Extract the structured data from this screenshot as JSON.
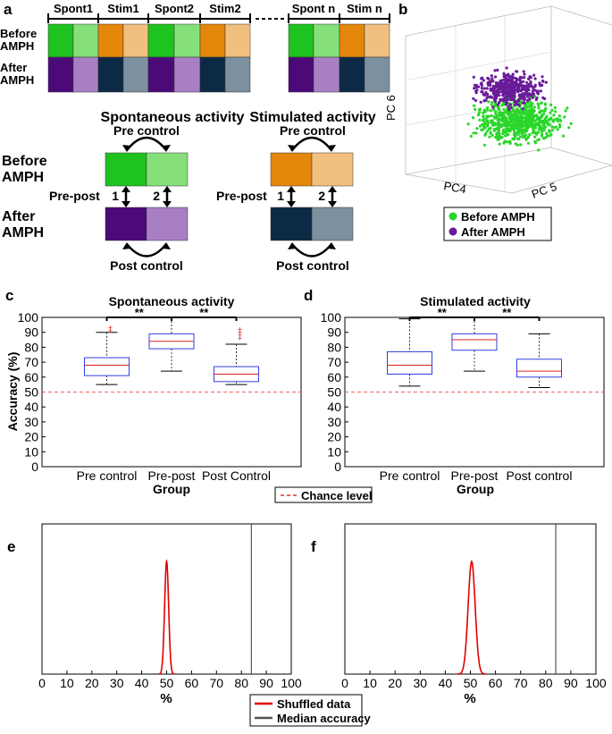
{
  "panel_labels": {
    "a": "a",
    "b": "b",
    "c": "c",
    "d": "d",
    "e": "e",
    "f": "f"
  },
  "colors": {
    "spont_before_dark": "#1fc31f",
    "spont_before_light": "#86e07a",
    "stim_before_dark": "#e5870b",
    "stim_before_light": "#f2c07e",
    "spont_after_dark": "#4b0a78",
    "spont_after_light": "#a97fc4",
    "stim_after_dark": "#0c2a45",
    "stim_after_light": "#7c90a0",
    "green_points": "#2ad62a",
    "purple_points": "#6a1b9a",
    "box": "#2f3fe0",
    "median": "#e02020",
    "chance": "#f26060",
    "shuffled": "#e00000",
    "median_line": "#555555"
  },
  "panel_a": {
    "timeline_labels": [
      "Spont1",
      "Stim1",
      "Spont2",
      "Stim2",
      "Spont n",
      "Stim n"
    ],
    "row_labels": [
      "Before AMPH",
      "After AMPH"
    ],
    "spont_title": "Spontaneous activity",
    "stim_title": "Stimulated activity",
    "pre_control": "Pre control",
    "post_control": "Post control",
    "pre_post": "Pre-post",
    "before_label": "Before AMPH",
    "after_label": "After AMPH",
    "arrow_num_1": "1",
    "arrow_num_2": "2"
  },
  "panel_b": {
    "axis_pc6": "PC 6",
    "axis_pc4": "PC4",
    "axis_pc5": "PC 5",
    "legend": [
      "Before AMPH",
      "After AMPH"
    ]
  },
  "chart_data": [
    {
      "id": "c",
      "type": "box",
      "title": "Spontaneous activity",
      "xlabel": "Group",
      "ylabel": "Accuracy (%)",
      "categories": [
        "Pre control",
        "Pre-post",
        "Post Control"
      ],
      "ylim": [
        0,
        100
      ],
      "yticks": [
        "0",
        "10",
        "20",
        "30",
        "40",
        "50",
        "60",
        "70",
        "80",
        "90",
        "100"
      ],
      "boxes": [
        {
          "min": 55,
          "q1": 61,
          "median": 68,
          "q3": 73,
          "max": 90,
          "outliers": [
            91,
            93
          ]
        },
        {
          "min": 64,
          "q1": 79,
          "median": 84,
          "q3": 89,
          "max": 100,
          "outliers": []
        },
        {
          "min": 55,
          "q1": 57,
          "median": 62,
          "q3": 67,
          "max": 82,
          "outliers": [
            86,
            88,
            90,
            92
          ]
        }
      ],
      "chance_level": 50,
      "significance": [
        "**",
        "**"
      ]
    },
    {
      "id": "d",
      "type": "box",
      "title": "Stimulated activity",
      "xlabel": "Group",
      "ylabel": "",
      "categories": [
        "Pre control",
        "Pre-post",
        "Post control"
      ],
      "ylim": [
        0,
        100
      ],
      "yticks": [
        "0",
        "10",
        "20",
        "30",
        "40",
        "50",
        "60",
        "70",
        "80",
        "90",
        "100"
      ],
      "boxes": [
        {
          "min": 54,
          "q1": 62,
          "median": 68,
          "q3": 77,
          "max": 99,
          "outliers": []
        },
        {
          "min": 64,
          "q1": 78,
          "median": 85,
          "q3": 89,
          "max": 100,
          "outliers": []
        },
        {
          "min": 53,
          "q1": 60,
          "median": 64,
          "q3": 72,
          "max": 89,
          "outliers": []
        }
      ],
      "chance_level": 50,
      "significance": [
        "**",
        "**"
      ]
    },
    {
      "id": "e",
      "type": "line",
      "xlabel": "%",
      "xlim": [
        0,
        100
      ],
      "xticks": [
        "0",
        "10",
        "20",
        "30",
        "40",
        "50",
        "60",
        "70",
        "80",
        "90",
        "100"
      ],
      "shuffled_peak": {
        "center": 50,
        "width": 0.8,
        "height": 0.75
      },
      "median_accuracy": 84
    },
    {
      "id": "f",
      "type": "line",
      "xlabel": "%",
      "xlim": [
        0,
        100
      ],
      "xticks": [
        "0",
        "10",
        "20",
        "30",
        "40",
        "50",
        "60",
        "70",
        "80",
        "90",
        "100"
      ],
      "shuffled_peak": {
        "center": 50.5,
        "width": 1.4,
        "height": 0.75
      },
      "median_accuracy": 84
    }
  ],
  "legend_cd": {
    "chance_label": "Chance level"
  },
  "legend_ef": {
    "shuffled_label": "Shuffled data",
    "median_label": "Median accuracy"
  }
}
